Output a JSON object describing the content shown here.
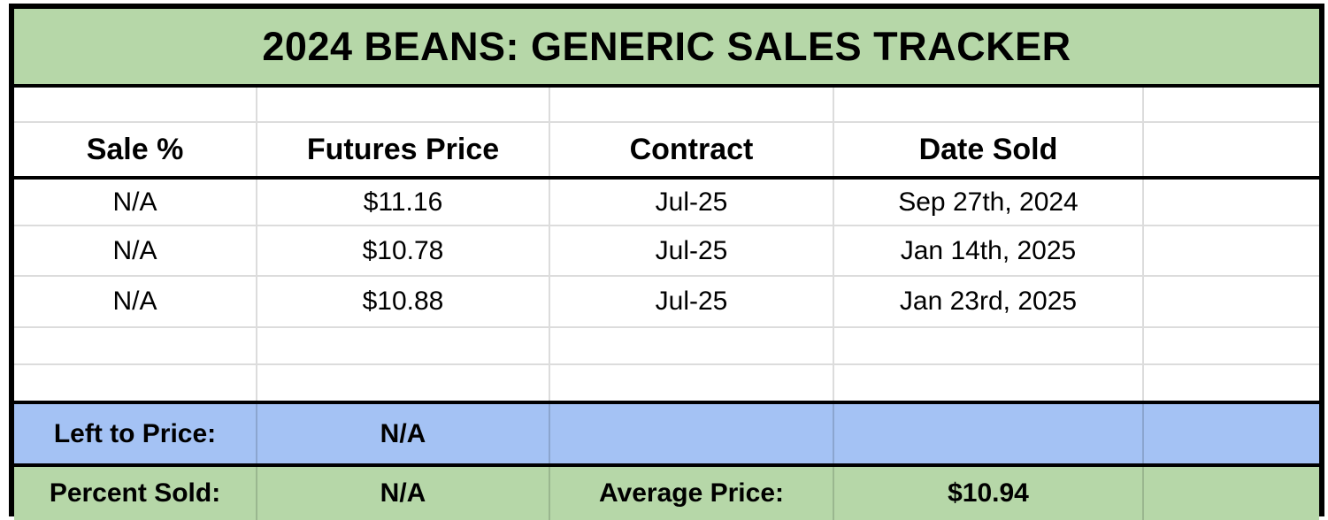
{
  "title_bar": {
    "text": "2024 BEANS: GENERIC SALES TRACKER"
  },
  "table": {
    "headers": {
      "sale_pct": "Sale %",
      "futures_price": "Futures Price",
      "contract": "Contract",
      "date_sold": "Date Sold",
      "extra": ""
    },
    "rows": [
      {
        "sale_pct": "N/A",
        "futures_price": "$11.16",
        "contract": "Jul-25",
        "date_sold": "Sep 27th, 2024",
        "extra": ""
      },
      {
        "sale_pct": "N/A",
        "futures_price": "$10.78",
        "contract": "Jul-25",
        "date_sold": "Jan 14th, 2025",
        "extra": ""
      },
      {
        "sale_pct": "N/A",
        "futures_price": "$10.88",
        "contract": "Jul-25",
        "date_sold": "Jan 23rd, 2025",
        "extra": ""
      }
    ]
  },
  "summary": {
    "left_to_price_label": "Left to Price:",
    "left_to_price_value": "N/A",
    "percent_sold_label": "Percent Sold:",
    "percent_sold_value": "N/A",
    "average_price_label": "Average Price:",
    "average_price_value": "$10.94"
  },
  "colors": {
    "banner_green": "#b6d7a8",
    "summary_blue": "#a4c2f4",
    "gridline": "#dcdcdc",
    "border_black": "#000000"
  }
}
